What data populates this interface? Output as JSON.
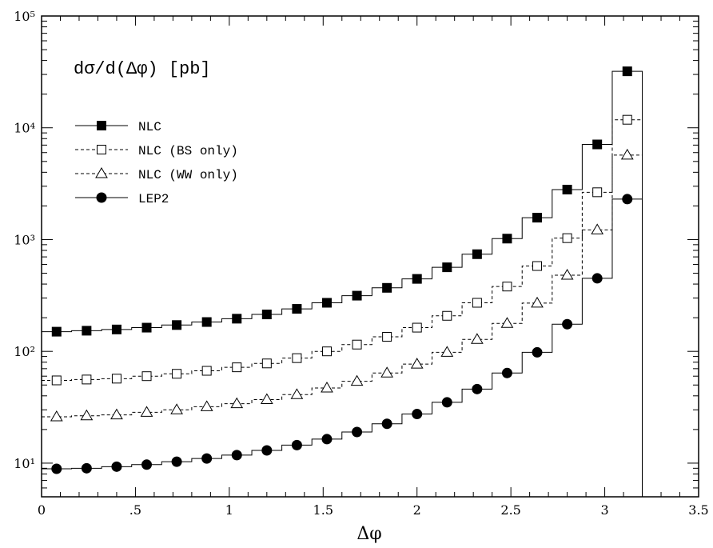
{
  "chart_data": {
    "type": "line",
    "title": "dσ/d(Δφ) [pb]",
    "xlabel": "Δφ",
    "ylabel": "",
    "xlim": [
      0,
      3.5
    ],
    "ylim": [
      5,
      100000
    ],
    "yscale": "log",
    "grid": false,
    "legend_position": "top-left",
    "x_ticks": [
      0,
      0.5,
      1,
      1.5,
      2,
      2.5,
      3,
      3.5
    ],
    "x_tick_labels": [
      "0",
      ".5",
      "1",
      "1.5",
      "2",
      "2.5",
      "3",
      "3.5"
    ],
    "y_ticks": [
      10,
      100,
      1000,
      10000,
      100000
    ],
    "y_tick_labels": [
      "10¹",
      "10²",
      "10³",
      "10⁴",
      "10⁵"
    ],
    "bin_edges": [
      0,
      0.16,
      0.32,
      0.48,
      0.64,
      0.8,
      0.96,
      1.12,
      1.28,
      1.44,
      1.6,
      1.76,
      1.92,
      2.08,
      2.24,
      2.4,
      2.56,
      2.72,
      2.88,
      3.04,
      3.2
    ],
    "x": [
      0.08,
      0.24,
      0.4,
      0.56,
      0.72,
      0.88,
      1.04,
      1.2,
      1.36,
      1.52,
      1.68,
      1.84,
      2.0,
      2.16,
      2.32,
      2.48,
      2.64,
      2.8,
      2.96,
      3.12
    ],
    "series": [
      {
        "name": "NLC",
        "marker": "filled-square",
        "line": "solid",
        "values": [
          150,
          153,
          157,
          163,
          172,
          183,
          196,
          214,
          240,
          272,
          315,
          370,
          445,
          565,
          740,
          1020,
          1570,
          2800,
          7100,
          32000
        ]
      },
      {
        "name": "NLC (BS only)",
        "marker": "open-square",
        "line": "dashed",
        "values": [
          55,
          56,
          57,
          60,
          63,
          67,
          72,
          78,
          87,
          100,
          115,
          135,
          163,
          208,
          272,
          380,
          580,
          1030,
          2650,
          11800
        ]
      },
      {
        "name": "NLC (WW only)",
        "marker": "open-triangle",
        "line": "dashed",
        "values": [
          26,
          26.5,
          27,
          28.5,
          30,
          32,
          34,
          37,
          41,
          47,
          54,
          64,
          77,
          98,
          128,
          178,
          270,
          480,
          1220,
          5700
        ]
      },
      {
        "name": "LEP2",
        "marker": "filled-circle",
        "line": "solid",
        "values": [
          8.9,
          9.0,
          9.3,
          9.7,
          10.3,
          11.0,
          11.8,
          13.0,
          14.5,
          16.4,
          19.0,
          22.5,
          27.5,
          35,
          46,
          64,
          98,
          175,
          450,
          2300
        ]
      }
    ]
  }
}
